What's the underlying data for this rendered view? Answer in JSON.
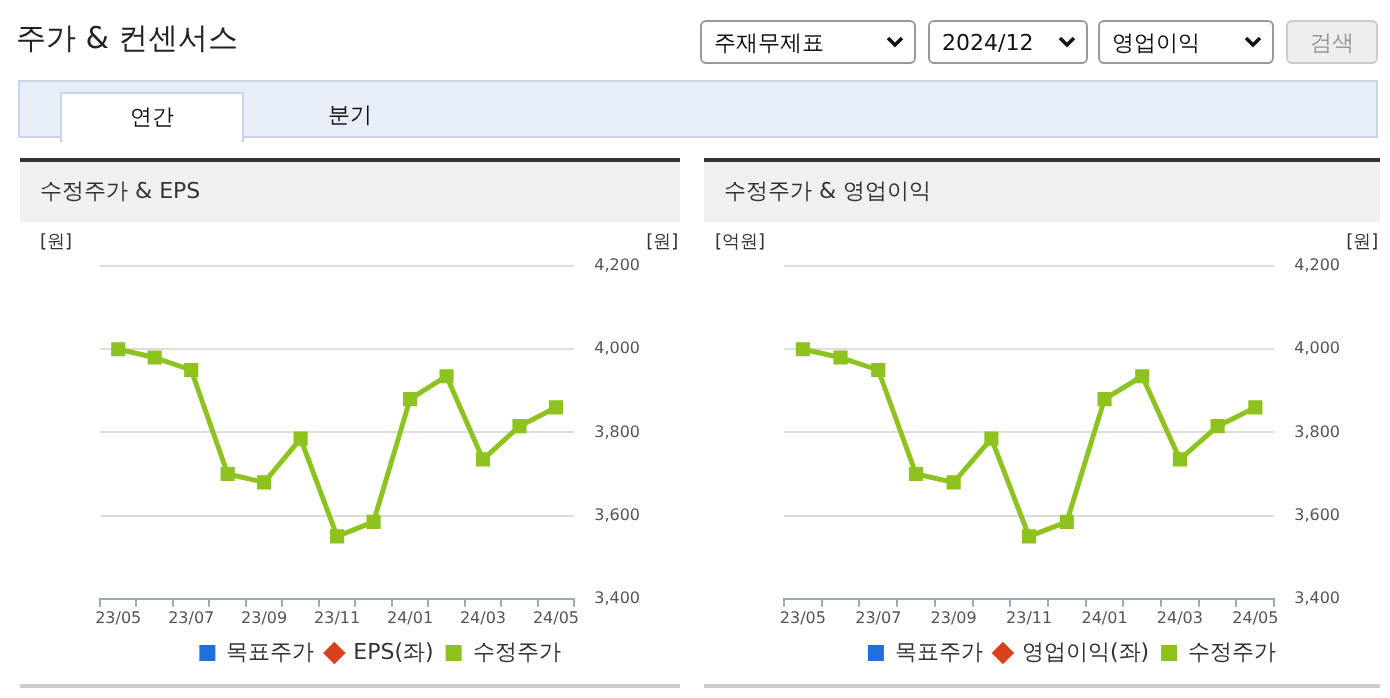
{
  "chart_data": [
    {
      "type": "other",
      "title": "주가 & 컨센서스",
      "annotations": [
        "주재무제표",
        "2024/12",
        "영업이익",
        "검색",
        "연간",
        "분기"
      ]
    },
    {
      "type": "line",
      "title": "수정주가 & EPS",
      "ylabel": "[원]",
      "y2label": "[원]",
      "categories": [
        "23/05",
        null,
        "23/07",
        null,
        "23/09",
        null,
        "23/11",
        null,
        "24/01",
        null,
        "24/03",
        null,
        "24/05"
      ],
      "series": [
        {
          "name": "목표주가",
          "type": "bar",
          "color": "#1f6fdc",
          "values": [
            null,
            null,
            null,
            null,
            null,
            null,
            null,
            null,
            null,
            null,
            null,
            null,
            null
          ]
        },
        {
          "name": "EPS(좌)",
          "type": "line",
          "color": "#d9411e",
          "marker": "diamond",
          "values": [
            null,
            null,
            null,
            null,
            null,
            null,
            null,
            null,
            null,
            null,
            null,
            null,
            null
          ]
        },
        {
          "name": "수정주가",
          "type": "line",
          "axis": "y2",
          "color": "#8dc21f",
          "marker": "square",
          "values": [
            4000,
            3980,
            3950,
            3700,
            3680,
            3785,
            3550,
            3585,
            3880,
            3935,
            3735,
            3815,
            3860
          ]
        }
      ],
      "y2lim": [
        3400,
        4200
      ],
      "y2ticks": [
        {
          "value": 3400,
          "label": "3,400"
        },
        {
          "value": 3600,
          "label": "3,600"
        },
        {
          "value": 3800,
          "label": "3,800"
        },
        {
          "value": 4000,
          "label": "4,000"
        },
        {
          "value": 4200,
          "label": "4,200"
        }
      ],
      "grid": "y",
      "legend": "bottom"
    },
    {
      "type": "line",
      "title": "수정주가 & 영업이익",
      "ylabel": "[억원]",
      "y2label": "[원]",
      "categories": [
        "23/05",
        null,
        "23/07",
        null,
        "23/09",
        null,
        "23/11",
        null,
        "24/01",
        null,
        "24/03",
        null,
        "24/05"
      ],
      "series": [
        {
          "name": "목표주가",
          "type": "bar",
          "color": "#1f6fdc",
          "values": [
            null,
            null,
            null,
            null,
            null,
            null,
            null,
            null,
            null,
            null,
            null,
            null,
            null
          ]
        },
        {
          "name": "영업이익(좌)",
          "type": "line",
          "color": "#d9411e",
          "marker": "diamond",
          "values": [
            null,
            null,
            null,
            null,
            null,
            null,
            null,
            null,
            null,
            null,
            null,
            null,
            null
          ]
        },
        {
          "name": "수정주가",
          "type": "line",
          "axis": "y2",
          "color": "#8dc21f",
          "marker": "square",
          "values": [
            4000,
            3980,
            3950,
            3700,
            3680,
            3785,
            3550,
            3585,
            3880,
            3935,
            3735,
            3815,
            3860
          ]
        }
      ],
      "y2lim": [
        3400,
        4200
      ],
      "y2ticks": [
        {
          "value": 3400,
          "label": "3,400"
        },
        {
          "value": 3600,
          "label": "3,600"
        },
        {
          "value": 3800,
          "label": "3,800"
        },
        {
          "value": 4000,
          "label": "4,000"
        },
        {
          "value": 4200,
          "label": "4,200"
        }
      ],
      "grid": "y",
      "legend": "bottom"
    }
  ]
}
